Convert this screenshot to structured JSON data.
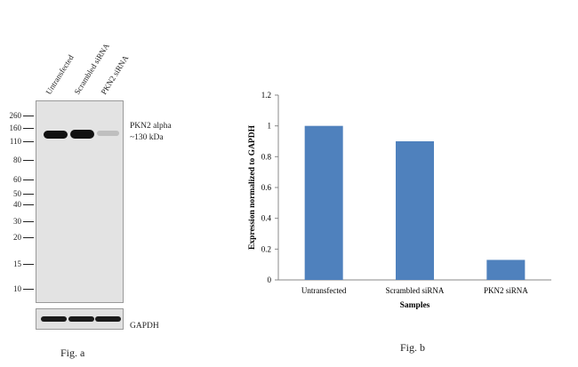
{
  "blot": {
    "lane_labels": [
      "Untransfected",
      "Scrambled siRNA",
      "PKN2 siRNA"
    ],
    "mw_markers": [
      "260",
      "160",
      "110",
      "80",
      "60",
      "50",
      "40",
      "30",
      "20",
      "15",
      "10"
    ],
    "band_label_1": "PKN2 alpha",
    "band_label_2": "~130 kDa",
    "loading_control_label": "GAPDH",
    "caption": "Fig. a"
  },
  "figure_b": {
    "caption": "Fig. b"
  },
  "chart_data": {
    "type": "bar",
    "categories": [
      "Untransfected",
      "Scrambled siRNA",
      "PKN2 siRNA"
    ],
    "values": [
      1.0,
      0.9,
      0.13
    ],
    "title": "",
    "xlabel": "Samples",
    "ylabel": "Expression normalized to GAPDH",
    "ylim": [
      0,
      1.2
    ],
    "yticks": [
      "0",
      "0.2",
      "0.4",
      "0.6",
      "0.8",
      "1",
      "1.2"
    ],
    "grid": false,
    "bar_color": "#4f81bd"
  }
}
